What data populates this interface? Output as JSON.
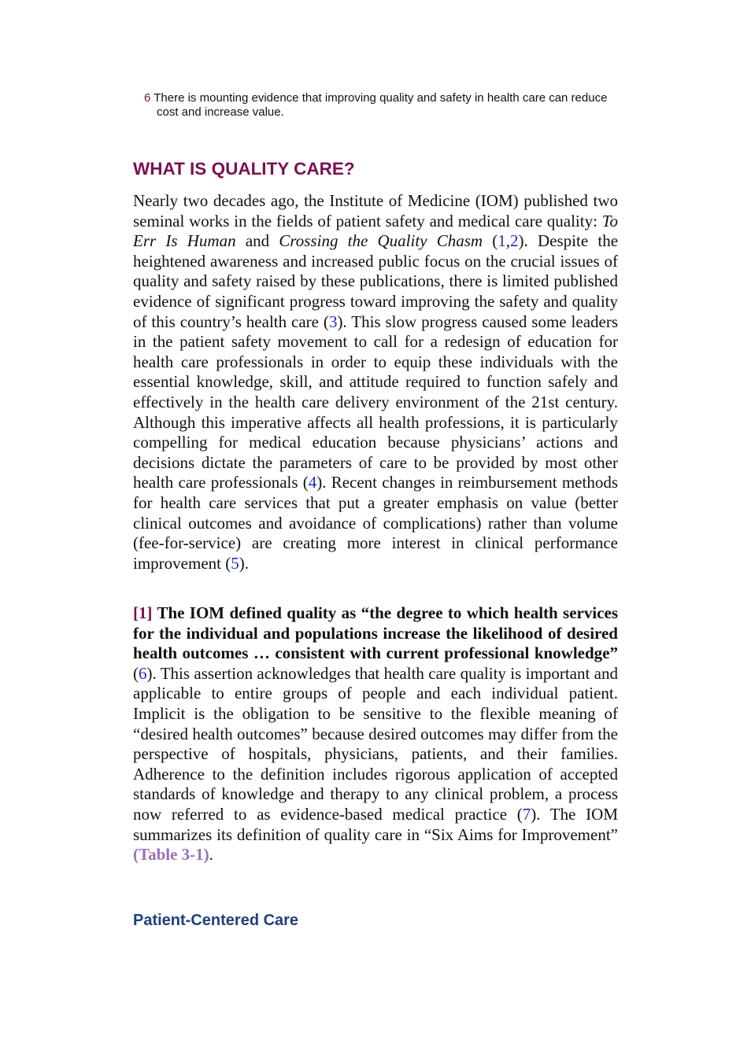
{
  "note_item": {
    "number": "6",
    "text": "There is mounting evidence that improving quality and safety in health care can reduce cost and increase value."
  },
  "heading": "WHAT IS QUALITY CARE?",
  "paragraphs": [
    [
      "Nearly two decades ago, the Institute of Medicine (IOM) published two seminal works in the fields of patient safety and medical care quality: ",
      "To Err Is Human",
      " and ",
      "Crossing the Quality Chasm",
      " (",
      "1",
      ",",
      "2",
      "). Despite the heightened awareness and increased public focus on the crucial issues of quality and safety raised by these publications, there is limited published evidence of significant progress toward improving the safety and quality of this country’s health care (",
      "3",
      "). This slow progress caused some leaders in the patient safety movement to call for a redesign of education for health care professionals in order to equip these individuals with the essential knowledge, skill, and attitude required to function safely and effectively in the health care delivery environment of the 21st century. Although this imperative affects all health professions, it is particularly compelling for medical education because physicians’ actions and decisions dictate the parameters of care to be provided by most other health care professionals (",
      "4",
      "). Recent changes in reimbursement methods for health care services that put a greater emphasis on value (better clinical outcomes and avoidance of complications) rather than volume (fee-for-service) are creating more interest in clinical performance improvement (",
      "5",
      ")."
    ],
    [
      "[1]",
      " The IOM defined quality as “the degree to which health services for the individual and populations increase the likelihood of desired health outcomes … consistent with current professional knowledge”",
      " (",
      "6",
      "). This assertion acknowledges that health care quality is important and applicable to entire groups of people and each individual patient. Implicit is the obligation to be sensitive to the flexible meaning of “desired health outcomes” because desired outcomes may differ from the perspective of hospitals, physicians, patients, and their families. Adherence to the definition includes rigorous application of accepted standards of knowledge and therapy to any clinical problem, a process now referred to as evidence-based medical practice (",
      "7",
      "). The IOM summarizes its definition of quality care in “Six Aims for Improvement” ",
      "(Table 3-1)",
      "."
    ]
  ],
  "subheading": "Patient-Centered Care"
}
